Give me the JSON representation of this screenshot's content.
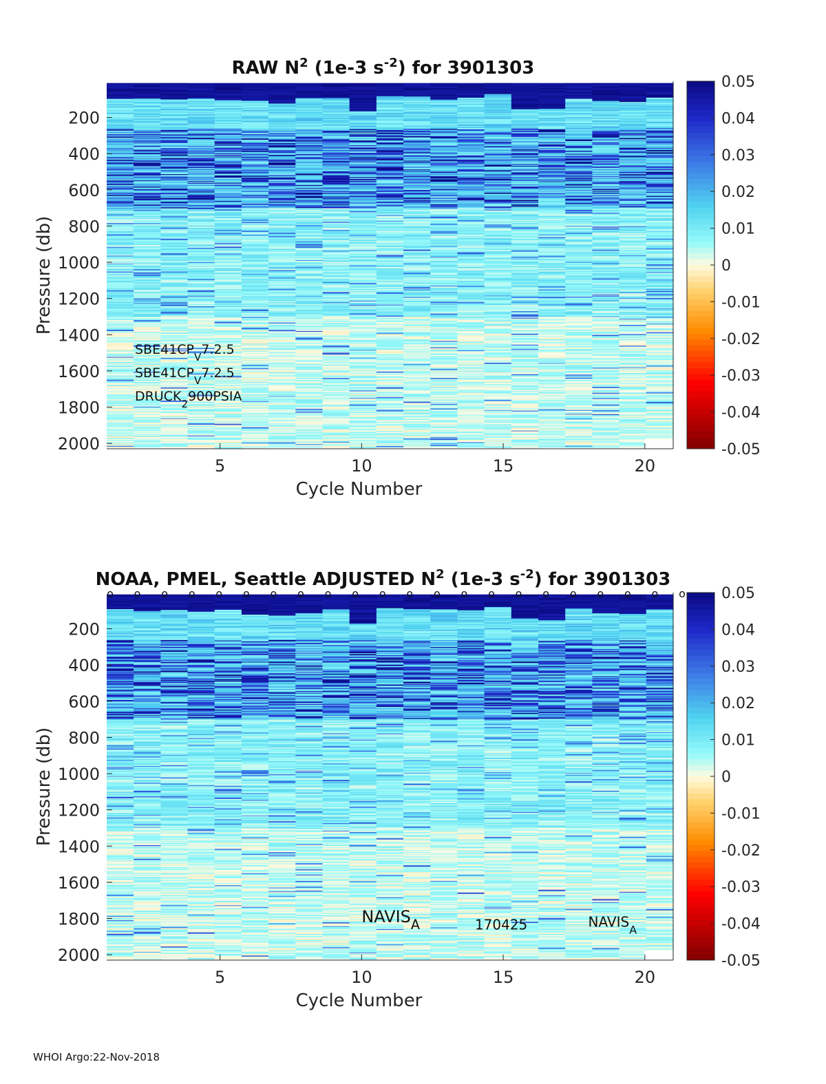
{
  "footer": "WHOI Argo:22-Nov-2018",
  "chart_data": [
    {
      "type": "heatmap",
      "title_parts": {
        "a": "RAW N",
        "sup1": "2",
        "b": " (1e-3 s",
        "sup2": "-2",
        "c": ") for 3901303"
      },
      "xlabel": "Cycle Number",
      "ylabel": "Pressure (db)",
      "xlim": [
        1,
        21
      ],
      "ylim": [
        2030,
        0
      ],
      "x_ticks": [
        5,
        10,
        15,
        20
      ],
      "y_ticks": [
        200,
        400,
        600,
        800,
        1000,
        1200,
        1400,
        1600,
        1800,
        2000
      ],
      "color_range": [
        -0.05,
        0.05
      ],
      "colorbar_ticks": [
        0.05,
        0.04,
        0.03,
        0.02,
        0.01,
        0,
        -0.01,
        -0.02,
        -0.03,
        -0.04,
        -0.05
      ],
      "colorbar_tick_labels": [
        "0.05",
        "0.04",
        "0.03",
        "0.02",
        "0.01",
        "0",
        "-0.01",
        "-0.02",
        "-0.03",
        "-0.04",
        "-0.05"
      ],
      "cycles": [
        1,
        2,
        3,
        4,
        5,
        6,
        7,
        8,
        9,
        10,
        11,
        12,
        13,
        14,
        15,
        16,
        17,
        18,
        19,
        20,
        21
      ],
      "mixed_layer_depth_db": [
        95,
        95,
        100,
        95,
        100,
        105,
        120,
        90,
        85,
        165,
        80,
        80,
        100,
        90,
        70,
        150,
        150,
        90,
        105,
        110,
        85
      ],
      "annotations": [
        {
          "text": "SBE41CP",
          "sub": "V",
          "rest": "7.2.5"
        },
        {
          "text": "SBE41CP",
          "sub": "V",
          "rest": "7.2.5"
        },
        {
          "text": "DRUCK",
          "sub": "2",
          "rest": "900PSIA"
        }
      ],
      "top_markers": []
    },
    {
      "type": "heatmap",
      "title_parts": {
        "pre": "NOAA, PMEL, Seattle  ADJUSTED N",
        "sup1": "2",
        "b": " (1e-3 s",
        "sup2": "-2",
        "c": ") for 3901303"
      },
      "xlabel": "Cycle Number",
      "ylabel": "Pressure (db)",
      "xlim": [
        1,
        21
      ],
      "ylim": [
        2030,
        0
      ],
      "x_ticks": [
        5,
        10,
        15,
        20
      ],
      "y_ticks": [
        200,
        400,
        600,
        800,
        1000,
        1200,
        1400,
        1600,
        1800,
        2000
      ],
      "color_range": [
        -0.05,
        0.05
      ],
      "colorbar_ticks": [
        0.05,
        0.04,
        0.03,
        0.02,
        0.01,
        0,
        -0.01,
        -0.02,
        -0.03,
        -0.04,
        -0.05
      ],
      "colorbar_tick_labels": [
        "0.05",
        "0.04",
        "0.03",
        "0.02",
        "0.01",
        "0",
        "-0.01",
        "-0.02",
        "-0.03",
        "-0.04",
        "-0.05"
      ],
      "cycles": [
        1,
        2,
        3,
        4,
        5,
        6,
        7,
        8,
        9,
        10,
        11,
        12,
        13,
        14,
        15,
        16,
        17,
        18,
        19,
        20,
        21
      ],
      "mixed_layer_depth_db": [
        90,
        100,
        95,
        100,
        90,
        120,
        125,
        110,
        90,
        170,
        85,
        85,
        90,
        95,
        80,
        140,
        150,
        85,
        110,
        115,
        90
      ],
      "annotations": [
        {
          "text": "NAVIS",
          "sub": "A",
          "rest": "",
          "at_cycle": 10,
          "at_db": 1790
        },
        {
          "text": "170425",
          "sub": "",
          "rest": "",
          "at_cycle": 14,
          "at_db": 1830
        },
        {
          "text": "NAVIS",
          "sub": "A",
          "rest": "",
          "at_cycle": 18,
          "at_db": 1815
        }
      ],
      "top_markers": [
        "o",
        "o",
        "o",
        "o",
        "o",
        "o",
        "o",
        "o",
        "o",
        "o",
        "o",
        "o",
        "o",
        "o",
        "o",
        "o",
        "o",
        "o",
        "o",
        "o",
        "o",
        "o"
      ]
    }
  ]
}
